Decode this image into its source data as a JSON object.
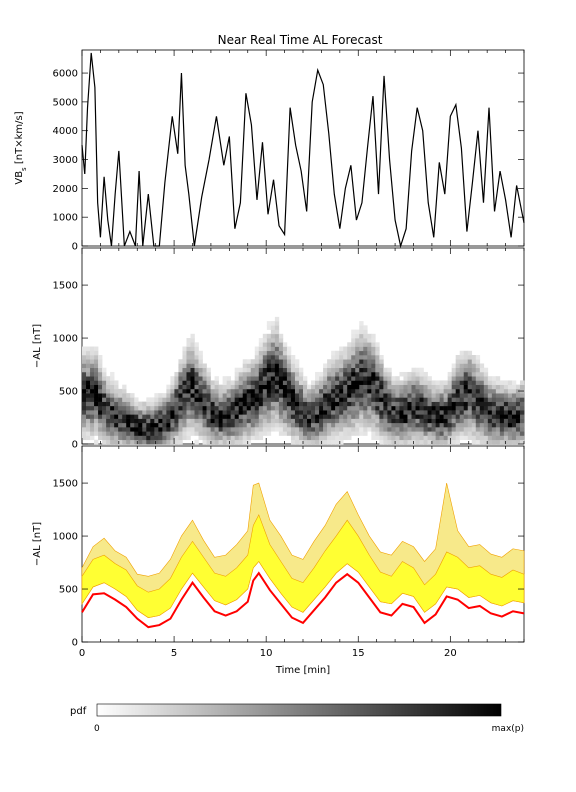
{
  "title": "Near Real Time AL Forecast",
  "colors": {
    "heat_low": "#ffffff",
    "heat_high": "#000000",
    "band_outer": "#f7e98a",
    "band_inner": "#ffff33",
    "band_edge": "#f0a000",
    "median": "#ff0000",
    "vbs_line": "#000000"
  },
  "chart_data": [
    {
      "type": "line",
      "ylabel": "VB",
      "ylabel_sub": "s",
      "ylabel_unit": " [nT×km/s]",
      "xlim": [
        0,
        24
      ],
      "ylim": [
        0,
        6800
      ],
      "yticks": [
        0,
        1000,
        2000,
        3000,
        4000,
        5000,
        6000
      ],
      "x": [
        0,
        0.15,
        0.3,
        0.5,
        0.7,
        0.85,
        1.0,
        1.2,
        1.4,
        1.6,
        1.8,
        2.0,
        2.3,
        2.6,
        2.9,
        3.1,
        3.3,
        3.6,
        3.9,
        4.2,
        4.5,
        4.9,
        5.2,
        5.4,
        5.6,
        5.8,
        6.1,
        6.5,
        6.9,
        7.3,
        7.7,
        8.0,
        8.3,
        8.6,
        8.9,
        9.2,
        9.5,
        9.8,
        10.1,
        10.4,
        10.7,
        11.0,
        11.3,
        11.6,
        11.9,
        12.2,
        12.5,
        12.8,
        13.1,
        13.4,
        13.7,
        14.0,
        14.3,
        14.6,
        14.9,
        15.2,
        15.5,
        15.8,
        16.1,
        16.4,
        16.7,
        17.0,
        17.3,
        17.6,
        17.9,
        18.2,
        18.5,
        18.8,
        19.1,
        19.4,
        19.7,
        20.0,
        20.3,
        20.6,
        20.9,
        21.2,
        21.5,
        21.8,
        22.1,
        22.4,
        22.7,
        23.0,
        23.3,
        23.6,
        24.0
      ],
      "y": [
        3500,
        2500,
        4800,
        6700,
        5500,
        1500,
        300,
        2400,
        900,
        0,
        1800,
        3300,
        0,
        500,
        0,
        2600,
        0,
        1800,
        0,
        0,
        2200,
        4500,
        3200,
        6000,
        2800,
        1800,
        0,
        1700,
        3000,
        4500,
        2800,
        3800,
        600,
        1500,
        5300,
        4200,
        1600,
        3600,
        1100,
        2300,
        700,
        400,
        4800,
        3500,
        2600,
        1200,
        5000,
        6100,
        5600,
        3900,
        1800,
        600,
        2000,
        2800,
        900,
        1500,
        3400,
        5200,
        1800,
        5900,
        3000,
        900,
        0,
        600,
        3300,
        4800,
        4000,
        1500,
        300,
        2900,
        1800,
        4500,
        4900,
        3400,
        500,
        2200,
        4000,
        1500,
        4800,
        1200,
        2600,
        1600,
        300,
        2100,
        800
      ]
    },
    {
      "type": "heatmap",
      "ylabel": "−AL [nT]",
      "xlim": [
        0,
        24
      ],
      "ylim": [
        0,
        1850
      ],
      "yticks": [
        0,
        500,
        1000,
        1500
      ],
      "centers": [
        460,
        480,
        320,
        250,
        210,
        150,
        140,
        170,
        230,
        400,
        550,
        420,
        280,
        250,
        300,
        380,
        420,
        560,
        650,
        480,
        350,
        250,
        300,
        400,
        450,
        520,
        610,
        560,
        400,
        280,
        300,
        350,
        300,
        250,
        270,
        420,
        480,
        380,
        290,
        270,
        250,
        270
      ]
    },
    {
      "type": "area",
      "ylabel": "−AL [nT]",
      "xlabel": "Time [min]",
      "xlim": [
        0,
        24
      ],
      "ylim": [
        0,
        1850
      ],
      "xticks": [
        0,
        5,
        10,
        15,
        20
      ],
      "yticks": [
        0,
        500,
        1000,
        1500
      ],
      "x": [
        0,
        0.6,
        1.2,
        1.8,
        2.4,
        3.0,
        3.6,
        4.2,
        4.8,
        5.4,
        6.0,
        6.6,
        7.2,
        7.8,
        8.4,
        9.0,
        9.3,
        9.6,
        10.2,
        10.8,
        11.4,
        12.0,
        12.6,
        13.2,
        13.8,
        14.4,
        15.0,
        15.6,
        16.2,
        16.8,
        17.4,
        18.0,
        18.6,
        19.2,
        19.8,
        20.4,
        21.0,
        21.6,
        22.2,
        22.8,
        23.4,
        24.0
      ],
      "median": [
        280,
        450,
        460,
        400,
        330,
        220,
        140,
        160,
        220,
        400,
        560,
        420,
        290,
        250,
        290,
        380,
        580,
        650,
        490,
        360,
        230,
        180,
        300,
        420,
        560,
        640,
        560,
        420,
        280,
        250,
        360,
        330,
        180,
        260,
        430,
        400,
        320,
        340,
        270,
        240,
        290,
        270
      ],
      "q_inner_low": [
        360,
        520,
        560,
        500,
        430,
        300,
        230,
        250,
        320,
        500,
        650,
        520,
        390,
        350,
        400,
        500,
        700,
        760,
        600,
        460,
        330,
        280,
        400,
        520,
        650,
        740,
        660,
        520,
        380,
        360,
        460,
        430,
        280,
        360,
        520,
        500,
        420,
        440,
        370,
        340,
        390,
        370
      ],
      "q_inner_high": [
        620,
        780,
        820,
        740,
        680,
        530,
        470,
        500,
        600,
        800,
        950,
        800,
        650,
        620,
        700,
        820,
        1100,
        1200,
        920,
        760,
        600,
        560,
        700,
        860,
        1000,
        1150,
        1000,
        820,
        660,
        620,
        760,
        700,
        540,
        640,
        850,
        800,
        700,
        720,
        640,
        610,
        680,
        640
      ],
      "q_outer_high": [
        700,
        900,
        980,
        860,
        800,
        640,
        620,
        650,
        780,
        1000,
        1150,
        960,
        800,
        820,
        920,
        1050,
        1480,
        1500,
        1150,
        1000,
        820,
        780,
        950,
        1100,
        1300,
        1420,
        1200,
        1000,
        850,
        820,
        950,
        900,
        760,
        880,
        1500,
        1050,
        900,
        920,
        830,
        800,
        880,
        860
      ]
    }
  ],
  "colorbar": {
    "label": "pdf",
    "min_label": "0",
    "max_label": "max(p)"
  }
}
